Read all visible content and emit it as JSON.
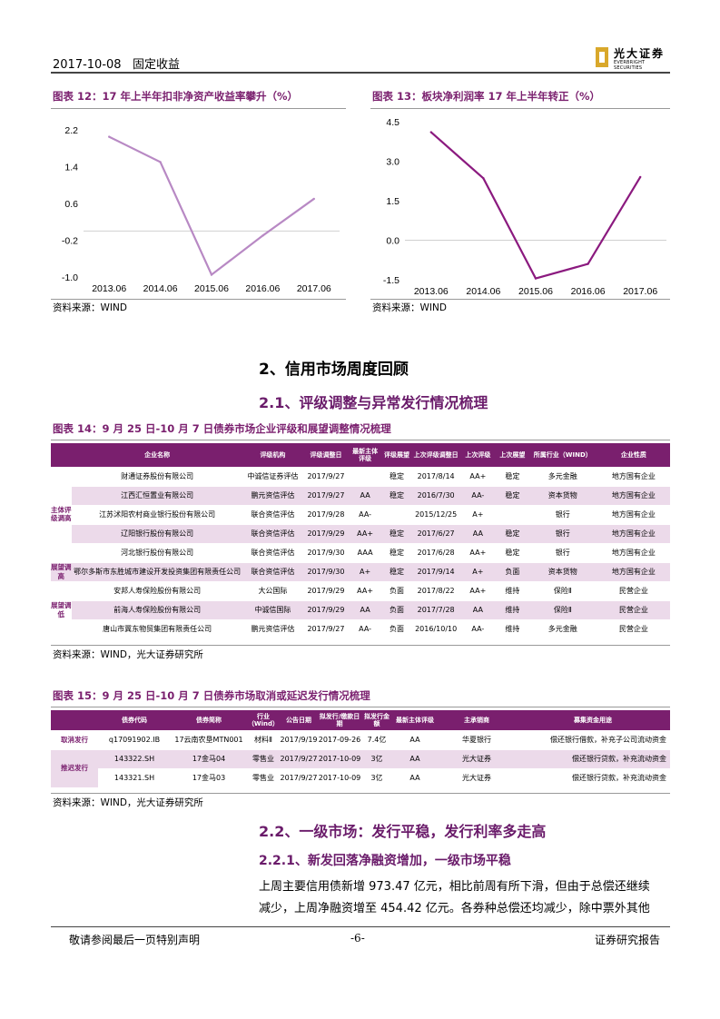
{
  "header": {
    "date": "2017-10-08",
    "section": "固定收益",
    "logo_cn": "光大证券",
    "logo_en": "EVERBRIGHT SECURITIES"
  },
  "fig12": {
    "title": "图表 12：17 年上半年扣非净资产收益率攀升（%）",
    "source": "资料来源：WIND",
    "chart_data": {
      "type": "line",
      "categories": [
        "2013.06",
        "2014.06",
        "2015.06",
        "2016.06",
        "2017.06"
      ],
      "values": [
        2.05,
        1.5,
        -0.95,
        -0.1,
        0.7
      ],
      "ylim": [
        -1.0,
        2.2
      ],
      "yticks": [
        "2.2",
        "1.4",
        "0.6",
        "-0.2",
        "-1.0"
      ],
      "color": "#b889c4"
    }
  },
  "fig13": {
    "title": "图表 13：板块净利润率 17 年上半年转正（%）",
    "source": "资料来源：WIND",
    "chart_data": {
      "type": "line",
      "categories": [
        "2013.06",
        "2014.06",
        "2015.06",
        "2016.06",
        "2017.06"
      ],
      "values": [
        4.1,
        2.35,
        -1.45,
        -0.9,
        2.4
      ],
      "ylim": [
        -1.5,
        4.5
      ],
      "yticks": [
        "4.5",
        "3.0",
        "1.5",
        "0.0",
        "-1.5"
      ],
      "color": "#8b1a7f"
    }
  },
  "sec2": {
    "title": "2、信用市场周度回顾",
    "sub1": "2.1、评级调整与异常发行情况梳理"
  },
  "fig14": {
    "title": "图表 14：9 月 25 日-10 月 7 日债券市场企业评级和展望调整情况梳理",
    "headers": [
      "企业名称",
      "评级机构",
      "评级调整日",
      "最新主体评级",
      "评级展望",
      "上次评级调整日",
      "上次评级",
      "上次展望",
      "所属行业（WIND）",
      "企业性质"
    ],
    "groups": [
      "主体评级调高",
      "展望调高",
      "展望调低"
    ],
    "rows": [
      [
        "财通证券股份有限公司",
        "中诚信证券评估",
        "2017/9/27",
        "",
        "稳定",
        "2017/8/14",
        "AA+",
        "稳定",
        "多元金融",
        "地方国有企业"
      ],
      [
        "江西汇恒置业有限公司",
        "鹏元资信评估",
        "2017/9/27",
        "AA",
        "稳定",
        "2016/7/30",
        "AA-",
        "稳定",
        "资本货物",
        "地方国有企业"
      ],
      [
        "江苏沭阳农村商业银行股份有限公司",
        "联合资信评估",
        "2017/9/28",
        "AA-",
        "",
        "2015/12/25",
        "A+",
        "",
        "银行",
        "地方国有企业"
      ],
      [
        "辽阳银行股份有限公司",
        "联合资信评估",
        "2017/9/29",
        "AA+",
        "稳定",
        "2017/6/27",
        "AA",
        "稳定",
        "银行",
        "地方国有企业"
      ],
      [
        "河北银行股份有限公司",
        "联合资信评估",
        "2017/9/30",
        "AAA",
        "稳定",
        "2017/6/28",
        "AA+",
        "稳定",
        "银行",
        "地方国有企业"
      ],
      [
        "鄂尔多斯市东胜城市建设开发投资集团有限责任公司",
        "联合资信评估",
        "2017/9/30",
        "A+",
        "稳定",
        "2017/9/14",
        "A+",
        "负面",
        "资本货物",
        "地方国有企业"
      ],
      [
        "安邦人寿保险股份有限公司",
        "大公国际",
        "2017/9/29",
        "AA+",
        "负面",
        "2017/8/22",
        "AA+",
        "维持",
        "保险Ⅱ",
        "民营企业"
      ],
      [
        "前海人寿保险股份有限公司",
        "中诚信国际",
        "2017/9/29",
        "AA",
        "负面",
        "2017/7/28",
        "AA",
        "维持",
        "保险Ⅱ",
        "民营企业"
      ],
      [
        "唐山市冀东物贸集团有限责任公司",
        "鹏元资信评估",
        "2017/9/27",
        "AA-",
        "负面",
        "2016/10/10",
        "AA-",
        "维持",
        "多元金融",
        "民营企业"
      ]
    ],
    "source": "资料来源：WIND，光大证券研究所"
  },
  "fig15": {
    "title": "图表 15：9 月 25 日-10 月 7 日债券市场取消或延迟发行情况梳理",
    "headers": [
      "",
      "债券代码",
      "债券简称",
      "行业（Wind）",
      "公告日期",
      "拟发行/缴款日期",
      "拟发行金额",
      "最新主体评级",
      "主承销商",
      "募集资金用途"
    ],
    "rows": [
      [
        "取消发行",
        "q17091902.IB",
        "17云南农垦MTN001",
        "材料Ⅱ",
        "2017/9/19",
        "2017-09-26",
        "7.4亿",
        "AA",
        "华夏银行",
        "偿还银行借款，补充子公司流动资金"
      ],
      [
        "推迟发行",
        "143322.SH",
        "17金马04",
        "零售业",
        "2017/9/27",
        "2017-10-09",
        "3亿",
        "AA",
        "光大证券",
        "偿还银行贷款，补充流动资金"
      ],
      [
        "",
        "143321.SH",
        "17金马03",
        "零售业",
        "2017/9/27",
        "2017-10-09",
        "3亿",
        "AA",
        "光大证券",
        "偿还银行贷款，补充流动资金"
      ]
    ],
    "source": "资料来源：WIND，光大证券研究所"
  },
  "sec22": {
    "title": "2.2、一级市场：发行平稳，发行利率多走高",
    "sub": "2.2.1、新发回落净融资增加，一级市场平稳",
    "para1": "上周主要信用债新增 973.47 亿元，相比前周有所下滑，但由于总偿还继续",
    "para2": "减少，上周净融资增至 454.42 亿元。各券种总偿还均减少，除中票外其他"
  },
  "footer": {
    "left": "敬请参阅最后一页特别声明",
    "page": "-6-",
    "right": "证券研究报告"
  }
}
